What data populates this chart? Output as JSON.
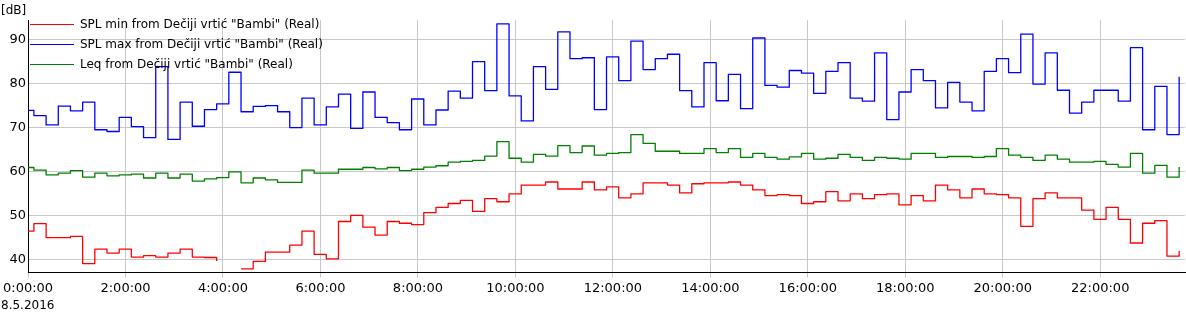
{
  "chart_data": {
    "type": "step",
    "ylabel": "[dB]",
    "annotations": [
      "8.5.2016"
    ],
    "x": [
      0,
      0.12,
      0.37,
      0.62,
      0.87,
      1.12,
      1.37,
      1.62,
      1.87,
      2.12,
      2.37,
      2.62,
      2.87,
      3.12,
      3.37,
      3.62,
      3.87,
      4.12,
      4.37,
      4.62,
      4.87,
      5.12,
      5.37,
      5.62,
      5.87,
      6.12,
      6.37,
      6.62,
      6.87,
      7.12,
      7.37,
      7.62,
      7.87,
      8.12,
      8.37,
      8.62,
      8.87,
      9.12,
      9.37,
      9.62,
      9.87,
      10.12,
      10.37,
      10.62,
      10.87,
      11.12,
      11.37,
      11.62,
      11.87,
      12.12,
      12.37,
      12.62,
      12.87,
      13.12,
      13.37,
      13.62,
      13.87,
      14.12,
      14.37,
      14.62,
      14.87,
      15.12,
      15.37,
      15.62,
      15.87,
      16.12,
      16.37,
      16.62,
      16.87,
      17.12,
      17.37,
      17.62,
      17.87,
      18.12,
      18.37,
      18.62,
      18.87,
      19.12,
      19.37,
      19.62,
      19.87,
      20.12,
      20.37,
      20.62,
      20.87,
      21.12,
      21.37,
      21.62,
      21.87,
      22.12,
      22.37,
      22.62,
      22.87,
      23.12,
      23.37,
      23.62
    ],
    "series": [
      {
        "name": "SPL min from Dečiji vrtić \"Bambi\" (Real)",
        "color": "#ff0000",
        "values": [
          46.4,
          48.1,
          44.9,
          44.9,
          45.2,
          39.0,
          42.3,
          41.4,
          42.3,
          40.5,
          40.8,
          40.5,
          41.4,
          42.3,
          40.5,
          40.4,
          39.6,
          null,
          37.8,
          39.5,
          41.6,
          41.6,
          43.2,
          46.4,
          41.1,
          40.1,
          48.6,
          50.0,
          47.3,
          45.5,
          48.6,
          48.2,
          47.9,
          50.6,
          51.8,
          52.7,
          53.4,
          50.9,
          53.8,
          53.1,
          54.9,
          56.9,
          56.9,
          57.6,
          56.0,
          56.0,
          57.6,
          55.8,
          56.5,
          54.0,
          54.9,
          57.4,
          57.4,
          56.9,
          55.1,
          57.2,
          57.4,
          57.4,
          57.6,
          56.9,
          55.8,
          54.5,
          54.7,
          54.5,
          52.7,
          53.1,
          55.4,
          53.3,
          54.9,
          53.8,
          54.7,
          54.9,
          52.4,
          54.5,
          53.3,
          56.9,
          55.8,
          54.0,
          56.0,
          54.9,
          54.7,
          54.0,
          47.5,
          53.8,
          55.1,
          54.0,
          54.0,
          51.2,
          49.1,
          51.8,
          49.1,
          43.7,
          48.2,
          48.8,
          40.7,
          41.9
        ]
      },
      {
        "name": "SPL max from Dečiji vrtić \"Bambi\" (Real)",
        "color": "#0000ff",
        "values": [
          73.9,
          72.7,
          70.6,
          74.9,
          73.8,
          75.8,
          69.5,
          69.1,
          72.3,
          70.2,
          67.7,
          83.9,
          67.3,
          75.8,
          70.3,
          74.1,
          75.4,
          82.6,
          73.6,
          74.8,
          75.0,
          73.6,
          70.0,
          76.7,
          70.6,
          74.7,
          77.6,
          69.8,
          78.1,
          72.3,
          71.1,
          69.5,
          76.5,
          70.6,
          74.0,
          78.3,
          76.7,
          85.0,
          78.4,
          93.6,
          77.2,
          71.5,
          83.9,
          78.7,
          91.8,
          85.7,
          85.9,
          74.1,
          86.1,
          80.7,
          89.7,
          83.2,
          85.7,
          86.7,
          78.4,
          74.7,
          84.8,
          76.1,
          82.1,
          74.3,
          90.4,
          79.6,
          79.2,
          83.0,
          82.4,
          77.8,
          82.8,
          84.8,
          76.7,
          76.0,
          87.0,
          71.8,
          78.1,
          83.2,
          80.7,
          74.5,
          80.3,
          75.8,
          73.8,
          82.8,
          85.7,
          82.5,
          91.3,
          79.9,
          87.0,
          78.5,
          73.3,
          75.8,
          78.5,
          78.5,
          76.0,
          88.2,
          69.5,
          79.4,
          68.4,
          81.6
        ]
      },
      {
        "name": "Leq from Dečiji vrtić \"Bambi\" (Real)",
        "color": "#008000",
        "values": [
          60.9,
          60.3,
          59.2,
          59.6,
          60.2,
          58.7,
          59.6,
          59.0,
          59.2,
          59.4,
          58.5,
          59.6,
          58.5,
          59.4,
          57.8,
          58.3,
          58.6,
          59.9,
          57.4,
          58.5,
          58.1,
          57.5,
          57.5,
          60.3,
          59.6,
          59.6,
          60.5,
          60.5,
          60.9,
          60.6,
          60.9,
          60.2,
          60.5,
          61.0,
          61.3,
          62.1,
          62.3,
          62.5,
          63.5,
          66.8,
          63.0,
          62.1,
          63.9,
          63.5,
          65.9,
          64.3,
          65.8,
          63.7,
          64.1,
          64.3,
          68.4,
          66.4,
          64.6,
          64.6,
          64.1,
          64.1,
          65.2,
          64.3,
          65.2,
          63.2,
          64.1,
          63.2,
          62.8,
          63.3,
          64.1,
          62.8,
          63.0,
          63.9,
          63.2,
          62.5,
          63.2,
          63.0,
          62.8,
          64.1,
          64.1,
          63.2,
          63.4,
          63.4,
          63.2,
          63.4,
          65.2,
          63.7,
          63.2,
          62.5,
          63.7,
          62.8,
          62.1,
          62.1,
          62.3,
          61.6,
          61.0,
          64.1,
          59.6,
          61.4,
          58.7,
          61.0
        ]
      }
    ],
    "xlim": [
      0,
      23.74
    ],
    "xticks": [
      {
        "value": 0,
        "label": "0:00:00"
      },
      {
        "value": 2,
        "label": "2:00:00"
      },
      {
        "value": 4,
        "label": "4:00:00"
      },
      {
        "value": 6,
        "label": "6:00:00"
      },
      {
        "value": 8,
        "label": "8:00:00"
      },
      {
        "value": 10,
        "label": "10:00:00"
      },
      {
        "value": 12,
        "label": "12:00:00"
      },
      {
        "value": 14,
        "label": "14:00:00"
      },
      {
        "value": 16,
        "label": "16:00:00"
      },
      {
        "value": 18,
        "label": "18:00:00"
      },
      {
        "value": 20,
        "label": "20:00:00"
      },
      {
        "value": 22,
        "label": "22:00:00"
      }
    ],
    "ylim": [
      37,
      94.5
    ],
    "yticks": [
      40,
      50,
      60,
      70,
      80,
      90
    ],
    "grid": true,
    "legend": "top left"
  }
}
